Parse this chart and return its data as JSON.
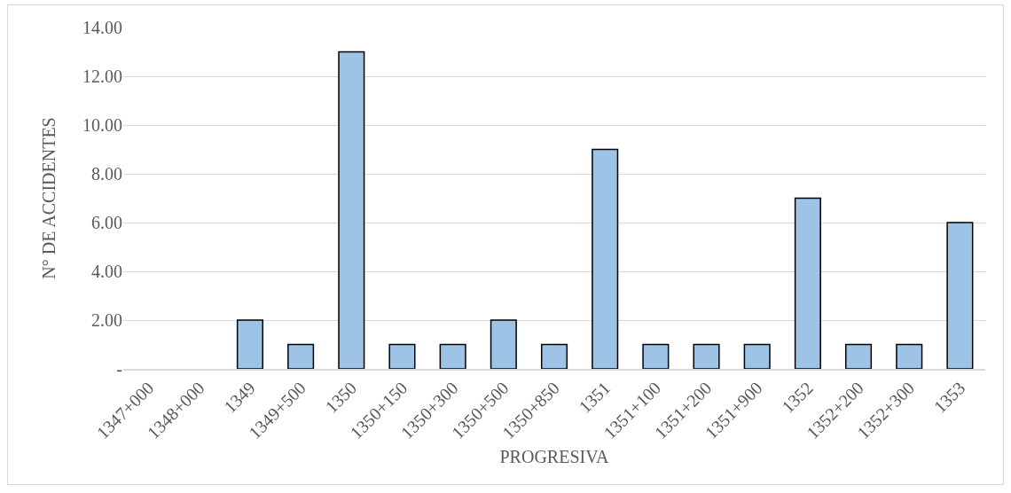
{
  "chart_data": {
    "type": "bar",
    "xlabel": "PROGRESIVA",
    "ylabel": "N° DE ACCIDENTES",
    "categories": [
      "1347+000",
      "1348+000",
      "1349",
      "1349+500",
      "1350",
      "1350+150",
      "1350+300",
      "1350+500",
      "1350+850",
      "1351",
      "1351+100",
      "1351+200",
      "1351+900",
      "1352",
      "1352+200",
      "1352+300",
      "1353"
    ],
    "values": [
      0,
      0,
      2,
      1,
      13,
      1,
      1,
      2,
      1,
      9,
      1,
      1,
      1,
      7,
      1,
      1,
      6
    ],
    "color": "#9dc3e6",
    "ylim": [
      0,
      14
    ],
    "yticks": [
      {
        "value": 0,
        "label": "-"
      },
      {
        "value": 2,
        "label": "2.00"
      },
      {
        "value": 4,
        "label": "4.00"
      },
      {
        "value": 6,
        "label": "6.00"
      },
      {
        "value": 8,
        "label": "8.00"
      },
      {
        "value": 10,
        "label": "10.00"
      },
      {
        "value": 12,
        "label": "12.00"
      },
      {
        "value": 14,
        "label": "14.00"
      }
    ],
    "grid": "y"
  }
}
